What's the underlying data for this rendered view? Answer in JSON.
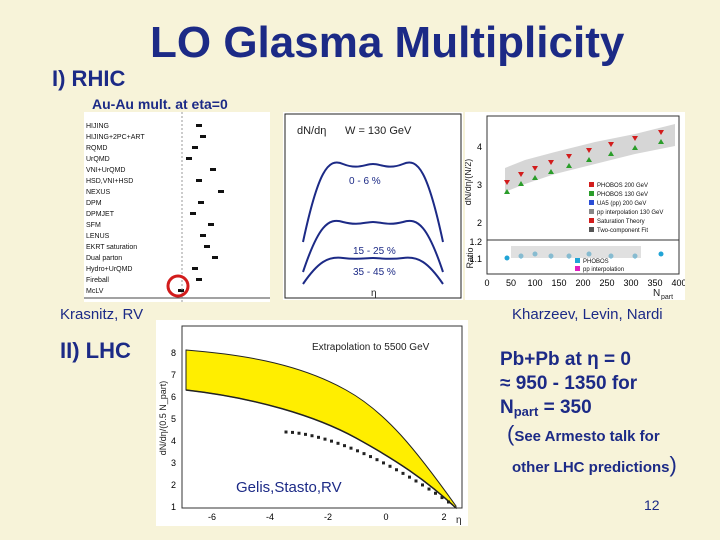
{
  "slide": {
    "title": "LO Glasma Multiplicity",
    "section1": "I) RHIC",
    "subtitle1": "Au-Au mult. at eta=0",
    "section2": "II) LHC",
    "credit_left": "Krasnitz, RV",
    "credit_right": "Kharzeev, Levin, Nardi",
    "credit_lhc": "Gelis,Stasto,RV",
    "pb_line1": "Pb+Pb at η = 0",
    "pb_line2": "≈ 950 - 1350 for",
    "pb_line3_main": "N",
    "pb_line3_sub": "part",
    "pb_line3_tail": " = 350",
    "see_text": "See Armesto talk for",
    "other_text": "other LHC predictions",
    "page_number": "12"
  },
  "panel_models": {
    "models": [
      "HIJING",
      "HIJING+2PC+ART",
      "RQMD",
      "UrQMD",
      "VNI+UrQMD",
      "HSD,VNI+HSD",
      "NEXUS",
      "DPM",
      "DPMJET",
      "SFM",
      "LENUS",
      "EKRT saturation",
      "Dual parton",
      "Hydro+UrQMD",
      "Fireball",
      "McLV"
    ],
    "highlight_color": "#d21c1c"
  },
  "panel_eta": {
    "ylabel": "dN/dη",
    "energy": "W = 130 GeV",
    "centralities": [
      "0 - 6 %",
      "15 - 25 %",
      "35 - 45 %"
    ],
    "xlabel": "η"
  },
  "panel_npart": {
    "ylabel_top": "dN/dη/(N/2)",
    "ylabel_bottom": "Ratio",
    "xlabel": "N",
    "xlabel_sub": "part",
    "xticks": [
      "0",
      "50",
      "100",
      "150",
      "200",
      "250",
      "300",
      "350",
      "400"
    ],
    "yticks_top": [
      "2",
      "3",
      "4"
    ],
    "yticks_bottom": [
      "1.1",
      "1.2"
    ],
    "legend": [
      "PHOBOS 200 GeV",
      "PHOBOS 130 GeV",
      "UA5 (pp) 200 GeV",
      "pp interpolation 130 GeV",
      "Saturation Theory",
      "Two-component Fit"
    ],
    "legend2": [
      "PHOBOS",
      "pp interpolation"
    ]
  },
  "panel_lhc": {
    "ylabel": "dN/dη/(0.5 N_part)",
    "annotation": "Extrapolation to 5500 GeV",
    "xlabel": "η",
    "xticks": [
      "-6",
      "-4",
      "-2",
      "0",
      "2"
    ],
    "yticks": [
      "1",
      "2",
      "3",
      "4",
      "5",
      "6",
      "7",
      "8"
    ],
    "band_color": "#ffee00"
  }
}
